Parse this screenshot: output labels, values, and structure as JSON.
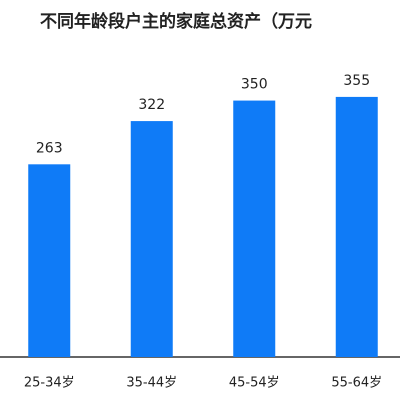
{
  "chart_data": {
    "type": "bar",
    "title": "不同年龄段户主的家庭总资产（万元",
    "categories": [
      "25-34岁",
      "35-44岁",
      "45-54岁",
      "55-64岁"
    ],
    "values": [
      263,
      322,
      350,
      355
    ],
    "color": "#0f7bf7",
    "ylim": [
      0,
      490
    ]
  }
}
